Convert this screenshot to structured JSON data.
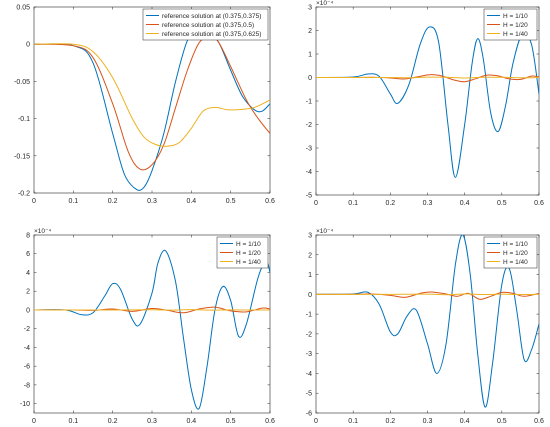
{
  "colors": {
    "blue": "#0072BD",
    "orange": "#D95319",
    "yellow": "#EDB120",
    "axis": "#262626",
    "legend_border": "#262626"
  },
  "chart_data": [
    {
      "type": "line",
      "title": "",
      "xlabel": "",
      "ylabel": "",
      "xlim": [
        0,
        0.6
      ],
      "ylim": [
        -0.2,
        0.05
      ],
      "xticks": [
        "0",
        "0.1",
        "0.2",
        "0.3",
        "0.4",
        "0.5",
        "0.6"
      ],
      "yticks": [
        "-0.2",
        "-0.15",
        "-0.1",
        "-0.05",
        "0",
        "0.05"
      ],
      "yticks_values": [
        -0.2,
        -0.15,
        -0.1,
        -0.05,
        0,
        0.05
      ],
      "y_exponent": "",
      "grid": false,
      "legend_position": "top-right",
      "series": [
        {
          "name": "reference solution at (0.375,0.375)",
          "color": "#0072BD",
          "x": [
            0,
            0.1,
            0.15,
            0.2,
            0.23,
            0.26,
            0.28,
            0.3,
            0.33,
            0.36,
            0.39,
            0.42,
            0.44,
            0.47,
            0.5,
            0.53,
            0.56,
            0.58,
            0.6
          ],
          "y": [
            0,
            -0.002,
            -0.025,
            -0.12,
            -0.175,
            -0.195,
            -0.192,
            -0.17,
            -0.12,
            -0.05,
            0.005,
            0.025,
            0.02,
            0.002,
            -0.035,
            -0.07,
            -0.088,
            -0.09,
            -0.08
          ]
        },
        {
          "name": "reference solution at (0.375,0.5)",
          "color": "#D95319",
          "x": [
            0,
            0.1,
            0.15,
            0.2,
            0.24,
            0.27,
            0.3,
            0.33,
            0.36,
            0.39,
            0.42,
            0.45,
            0.47,
            0.5,
            0.54,
            0.57,
            0.6
          ],
          "y": [
            0,
            -0.002,
            -0.018,
            -0.08,
            -0.145,
            -0.168,
            -0.162,
            -0.135,
            -0.085,
            -0.035,
            0.002,
            0.01,
            0.002,
            -0.03,
            -0.075,
            -0.1,
            -0.12
          ]
        },
        {
          "name": "reference solution at (0.375,0.625)",
          "color": "#EDB120",
          "x": [
            0,
            0.1,
            0.15,
            0.2,
            0.25,
            0.28,
            0.31,
            0.34,
            0.37,
            0.4,
            0.43,
            0.46,
            0.49,
            0.52,
            0.56,
            0.6
          ],
          "y": [
            0,
            0,
            -0.01,
            -0.045,
            -0.1,
            -0.125,
            -0.135,
            -0.137,
            -0.132,
            -0.113,
            -0.09,
            -0.085,
            -0.088,
            -0.088,
            -0.085,
            -0.075
          ]
        }
      ]
    },
    {
      "type": "line",
      "title": "",
      "xlabel": "",
      "ylabel": "",
      "xlim": [
        0,
        0.6
      ],
      "ylim": [
        -5,
        3
      ],
      "xticks": [
        "0",
        "0.1",
        "0.2",
        "0.3",
        "0.4",
        "0.5",
        "0.6"
      ],
      "yticks": [
        "-5",
        "-4",
        "-3",
        "-2",
        "-1",
        "0",
        "1",
        "2",
        "3"
      ],
      "yticks_values": [
        -5,
        -4,
        -3,
        -2,
        -1,
        0,
        1,
        2,
        3
      ],
      "y_exponent": "×10⁻⁴",
      "grid": false,
      "legend_position": "top-right",
      "series": [
        {
          "name": "H = 1/10",
          "color": "#0072BD",
          "x": [
            0,
            0.1,
            0.14,
            0.17,
            0.2,
            0.22,
            0.25,
            0.28,
            0.305,
            0.33,
            0.355,
            0.375,
            0.4,
            0.42,
            0.435,
            0.45,
            0.47,
            0.49,
            0.51,
            0.53,
            0.555,
            0.58,
            0.6
          ],
          "y": [
            0,
            0.02,
            0.15,
            0.05,
            -0.7,
            -1.1,
            -0.3,
            1.4,
            2.15,
            1.5,
            -2.0,
            -4.25,
            -2.0,
            0.6,
            1.65,
            0.8,
            -1.5,
            -2.3,
            -1.2,
            0.6,
            1.85,
            1.4,
            -0.7
          ]
        },
        {
          "name": "H = 1/20",
          "color": "#D95319",
          "x": [
            0,
            0.1,
            0.15,
            0.2,
            0.24,
            0.28,
            0.31,
            0.34,
            0.37,
            0.4,
            0.43,
            0.46,
            0.49,
            0.52,
            0.55,
            0.58,
            0.6
          ],
          "y": [
            0,
            0,
            0.01,
            -0.02,
            -0.06,
            0.05,
            0.12,
            0.06,
            -0.1,
            -0.18,
            -0.05,
            0.1,
            0.07,
            -0.06,
            -0.08,
            0.06,
            0.02
          ]
        },
        {
          "name": "H = 1/40",
          "color": "#EDB120",
          "x": [
            0,
            0.1,
            0.2,
            0.25,
            0.3,
            0.35,
            0.4,
            0.45,
            0.5,
            0.55,
            0.6
          ],
          "y": [
            0,
            0,
            0,
            -0.01,
            0.015,
            0.01,
            -0.02,
            0.01,
            0.01,
            -0.01,
            0
          ]
        }
      ]
    },
    {
      "type": "line",
      "title": "",
      "xlabel": "",
      "ylabel": "",
      "xlim": [
        0,
        0.6
      ],
      "ylim": [
        -11,
        8
      ],
      "xticks": [
        "0",
        "0.1",
        "0.2",
        "0.3",
        "0.4",
        "0.5",
        "0.6"
      ],
      "yticks": [
        "-10",
        "-8",
        "-6",
        "-4",
        "-2",
        "0",
        "2",
        "4",
        "6",
        "8"
      ],
      "yticks_values": [
        -10,
        -8,
        -6,
        -4,
        -2,
        0,
        2,
        4,
        6,
        8
      ],
      "y_exponent": "×10⁻⁴",
      "grid": false,
      "legend_position": "top-right",
      "series": [
        {
          "name": "H = 1/10",
          "color": "#0072BD",
          "x": [
            0,
            0.08,
            0.12,
            0.15,
            0.18,
            0.2,
            0.22,
            0.25,
            0.27,
            0.3,
            0.315,
            0.335,
            0.36,
            0.38,
            0.4,
            0.42,
            0.44,
            0.46,
            0.48,
            0.5,
            0.52,
            0.54,
            0.57,
            0.59,
            0.6
          ],
          "y": [
            0,
            0,
            -0.5,
            -0.3,
            1.5,
            2.8,
            2.2,
            -1.0,
            -1.5,
            1.8,
            5.0,
            6.3,
            3.0,
            -3.0,
            -8.5,
            -10.5,
            -6.0,
            0.0,
            2.5,
            1.0,
            -2.8,
            -1.5,
            3.5,
            5.2,
            4.0
          ]
        },
        {
          "name": "H = 1/20",
          "color": "#D95319",
          "x": [
            0,
            0.1,
            0.15,
            0.2,
            0.25,
            0.3,
            0.34,
            0.38,
            0.42,
            0.46,
            0.5,
            0.54,
            0.58,
            0.6
          ],
          "y": [
            0,
            0,
            -0.05,
            0.1,
            -0.15,
            0.15,
            -0.05,
            -0.3,
            0.1,
            0.3,
            -0.1,
            -0.2,
            0.2,
            0.1
          ]
        },
        {
          "name": "H = 1/40",
          "color": "#EDB120",
          "x": [
            0,
            0.1,
            0.2,
            0.3,
            0.35,
            0.4,
            0.45,
            0.5,
            0.55,
            0.6
          ],
          "y": [
            0,
            0,
            0,
            0.02,
            -0.02,
            0.03,
            -0.02,
            0.01,
            -0.01,
            0
          ]
        }
      ]
    },
    {
      "type": "line",
      "title": "",
      "xlabel": "",
      "ylabel": "",
      "xlim": [
        0,
        0.6
      ],
      "ylim": [
        -6,
        3
      ],
      "xticks": [
        "0",
        "0.1",
        "0.2",
        "0.3",
        "0.4",
        "0.5",
        "0.6"
      ],
      "yticks": [
        "-6",
        "-5",
        "-4",
        "-3",
        "-2",
        "-1",
        "0",
        "1",
        "2",
        "3"
      ],
      "yticks_values": [
        -6,
        -5,
        -4,
        -3,
        -2,
        -1,
        0,
        1,
        2,
        3
      ],
      "y_exponent": "×10⁻⁴",
      "grid": false,
      "legend_position": "top-right",
      "series": [
        {
          "name": "H = 1/10",
          "color": "#0072BD",
          "x": [
            0,
            0.1,
            0.14,
            0.17,
            0.2,
            0.22,
            0.245,
            0.27,
            0.3,
            0.325,
            0.35,
            0.375,
            0.395,
            0.415,
            0.435,
            0.455,
            0.475,
            0.5,
            0.52,
            0.54,
            0.56,
            0.58,
            0.6
          ],
          "y": [
            0,
            0.02,
            0.1,
            -0.5,
            -1.9,
            -2.0,
            -1.1,
            -0.8,
            -2.5,
            -4.0,
            -2.5,
            1.5,
            3.0,
            1.0,
            -3.0,
            -5.7,
            -3.5,
            0.5,
            1.3,
            -0.8,
            -3.3,
            -2.8,
            -1.5
          ]
        },
        {
          "name": "H = 1/20",
          "color": "#D95319",
          "x": [
            0,
            0.1,
            0.15,
            0.2,
            0.24,
            0.28,
            0.31,
            0.35,
            0.38,
            0.41,
            0.44,
            0.47,
            0.5,
            0.53,
            0.56,
            0.6
          ],
          "y": [
            0,
            0,
            0.02,
            -0.05,
            -0.15,
            0.05,
            0.12,
            0.02,
            -0.1,
            0.05,
            -0.25,
            -0.1,
            0.1,
            0.05,
            -0.1,
            0.05
          ]
        },
        {
          "name": "H = 1/40",
          "color": "#EDB120",
          "x": [
            0,
            0.1,
            0.2,
            0.3,
            0.35,
            0.4,
            0.45,
            0.5,
            0.55,
            0.6
          ],
          "y": [
            0,
            0,
            0,
            0.01,
            -0.02,
            0.02,
            -0.01,
            0.01,
            -0.01,
            0
          ]
        }
      ]
    }
  ]
}
